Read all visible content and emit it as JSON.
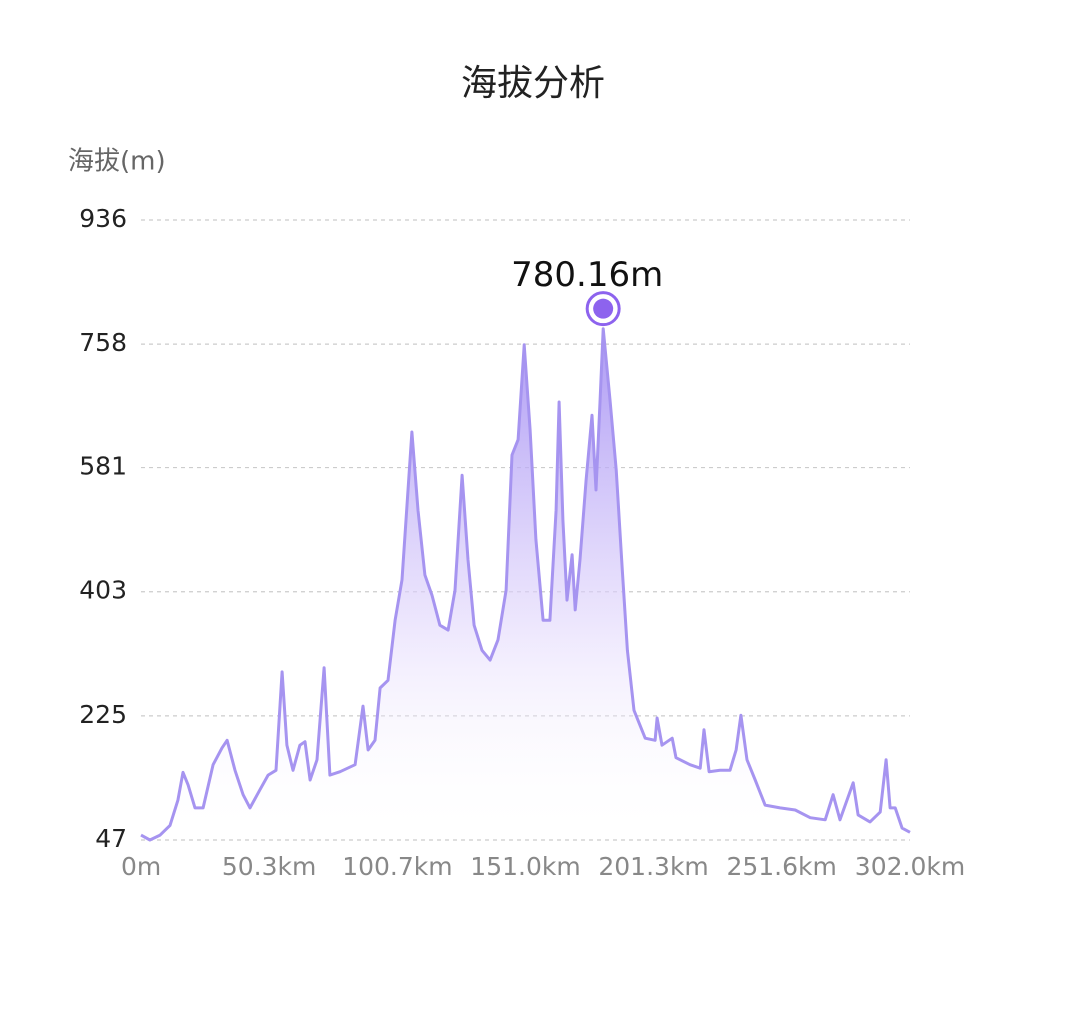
{
  "chart_data": {
    "type": "area",
    "title": "海拔分析",
    "y_label": "海拔(m)",
    "color": "#a694f0",
    "marker_color": "#8d63ee",
    "xlim": [
      0,
      302.0
    ],
    "ylim": [
      47,
      936
    ],
    "yticks": [
      47,
      225,
      403,
      581,
      758,
      936
    ],
    "xticks": [
      {
        "value": 0,
        "label": "0m"
      },
      {
        "value": 50.3,
        "label": "50.3km"
      },
      {
        "value": 100.7,
        "label": "100.7km"
      },
      {
        "value": 151.0,
        "label": "151.0km"
      },
      {
        "value": 201.3,
        "label": "201.3km"
      },
      {
        "value": 251.6,
        "label": "251.6km"
      },
      {
        "value": 302.0,
        "label": "302.0km"
      }
    ],
    "grid": true,
    "x": [
      0,
      3.5,
      7.5,
      11.4,
      14.5,
      16.5,
      18.5,
      21.2,
      24.4,
      28.3,
      31.8,
      33.8,
      36.9,
      40.1,
      42.8,
      46.7,
      49.9,
      53.0,
      55.4,
      57.3,
      59.7,
      62.4,
      64.4,
      66.4,
      69.1,
      71.9,
      74.2,
      78.2,
      84.1,
      87.2,
      89.2,
      91.9,
      93.9,
      97.0,
      99.8,
      102.5,
      106.4,
      108.8,
      111.5,
      114.3,
      117.4,
      120.6,
      123.3,
      126.1,
      128.4,
      130.8,
      133.9,
      137.1,
      140.2,
      143.4,
      145.7,
      148.1,
      150.5,
      152.8,
      155.1,
      157.9,
      160.6,
      163.0,
      164.2,
      165.7,
      167.3,
      169.3,
      170.5,
      172.4,
      174.8,
      177.1,
      178.7,
      180.3,
      181.5,
      184.2,
      186.6,
      189.0,
      191.0,
      193.6,
      198.0,
      201.9,
      202.7,
      204.6,
      208.6,
      210.1,
      215.6,
      219.6,
      221.1,
      223.1,
      227.4,
      231.3,
      233.7,
      235.6,
      238.0,
      241.2,
      245.1,
      251.0,
      256.9,
      262.8,
      268.7,
      271.8,
      274.5,
      279.7,
      281.6,
      286.3,
      290.3,
      292.6,
      294.2,
      296.2,
      298.9,
      302.0
    ],
    "values": [
      54,
      47,
      54,
      68,
      104,
      144,
      126,
      93,
      93,
      155,
      179,
      190,
      147,
      112,
      93,
      119,
      140,
      147,
      288,
      183,
      147,
      183,
      188,
      133,
      162,
      294,
      140,
      145,
      155,
      239,
      176,
      190,
      265,
      276,
      362,
      420,
      632,
      520,
      427,
      398,
      355,
      348,
      405,
      570,
      449,
      355,
      319,
      305,
      334,
      405,
      599,
      621,
      757,
      635,
      478,
      362,
      362,
      520,
      675,
      506,
      391,
      456,
      377,
      449,
      563,
      656,
      549,
      678,
      780.16,
      678,
      578,
      434,
      319,
      233,
      193,
      190,
      222,
      183,
      193,
      165,
      155,
      150,
      205,
      145,
      147,
      147,
      176,
      226,
      162,
      133,
      97,
      93,
      90,
      79,
      76,
      112,
      76,
      129,
      83,
      73,
      87,
      162,
      93,
      93,
      64,
      58
    ],
    "annotation": {
      "text": "780.16m",
      "x": 181.5,
      "y": 780.16
    }
  }
}
